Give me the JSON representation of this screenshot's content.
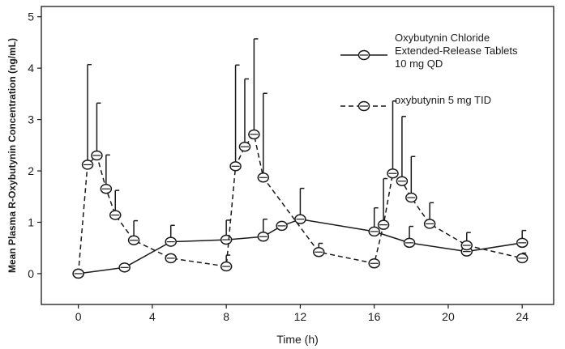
{
  "chart_data": {
    "type": "line",
    "xlabel": "Time (h)",
    "ylabel": "Mean Plasma R-Oxybutynin Concentration (ng/mL)",
    "xlim": [
      -2,
      25.7
    ],
    "ylim": [
      -0.6,
      5.2
    ],
    "xticks": [
      "0",
      "4",
      "8",
      "12",
      "16",
      "20",
      "24"
    ],
    "yticks": [
      "0",
      "1",
      "2",
      "3",
      "4",
      "5"
    ],
    "series": [
      {
        "name": "Oxybutynin Chloride Extended-Release Tablets 10 mg QD",
        "legend_lines": [
          "Oxybutynin Chloride",
          "Extended-Release Tablets",
          "10 mg QD"
        ],
        "style": "solid",
        "x": [
          0,
          2.5,
          5,
          8,
          10,
          11,
          12,
          16,
          17.9,
          21,
          24
        ],
        "y": [
          0,
          0.12,
          0.62,
          0.66,
          0.72,
          0.93,
          1.06,
          0.82,
          0.6,
          0.43,
          0.6
        ],
        "err_upper": [
          null,
          null,
          0.94,
          1.04,
          1.06,
          null,
          1.66,
          1.28,
          0.92,
          0.8,
          0.84
        ]
      },
      {
        "name": "oxybutynin 5 mg TID",
        "legend_lines": [
          "oxybutynin 5 mg TID"
        ],
        "style": "dashed",
        "x": [
          0,
          0.5,
          1,
          1.5,
          2,
          3,
          5,
          8,
          8.5,
          9,
          9.5,
          10,
          13,
          16,
          16.5,
          17,
          17.5,
          18,
          19,
          21,
          24
        ],
        "y": [
          0,
          2.12,
          2.3,
          1.65,
          1.14,
          0.65,
          0.3,
          0.14,
          2.09,
          2.47,
          2.71,
          1.87,
          0.42,
          0.2,
          0.95,
          1.95,
          1.8,
          1.48,
          0.97,
          0.55,
          0.3
        ],
        "err_upper": [
          null,
          4.07,
          3.32,
          2.31,
          1.62,
          1.03,
          null,
          0.36,
          4.06,
          3.79,
          4.57,
          3.51,
          0.59,
          null,
          1.85,
          3.36,
          3.06,
          2.28,
          1.38,
          null,
          0.4
        ]
      }
    ]
  }
}
